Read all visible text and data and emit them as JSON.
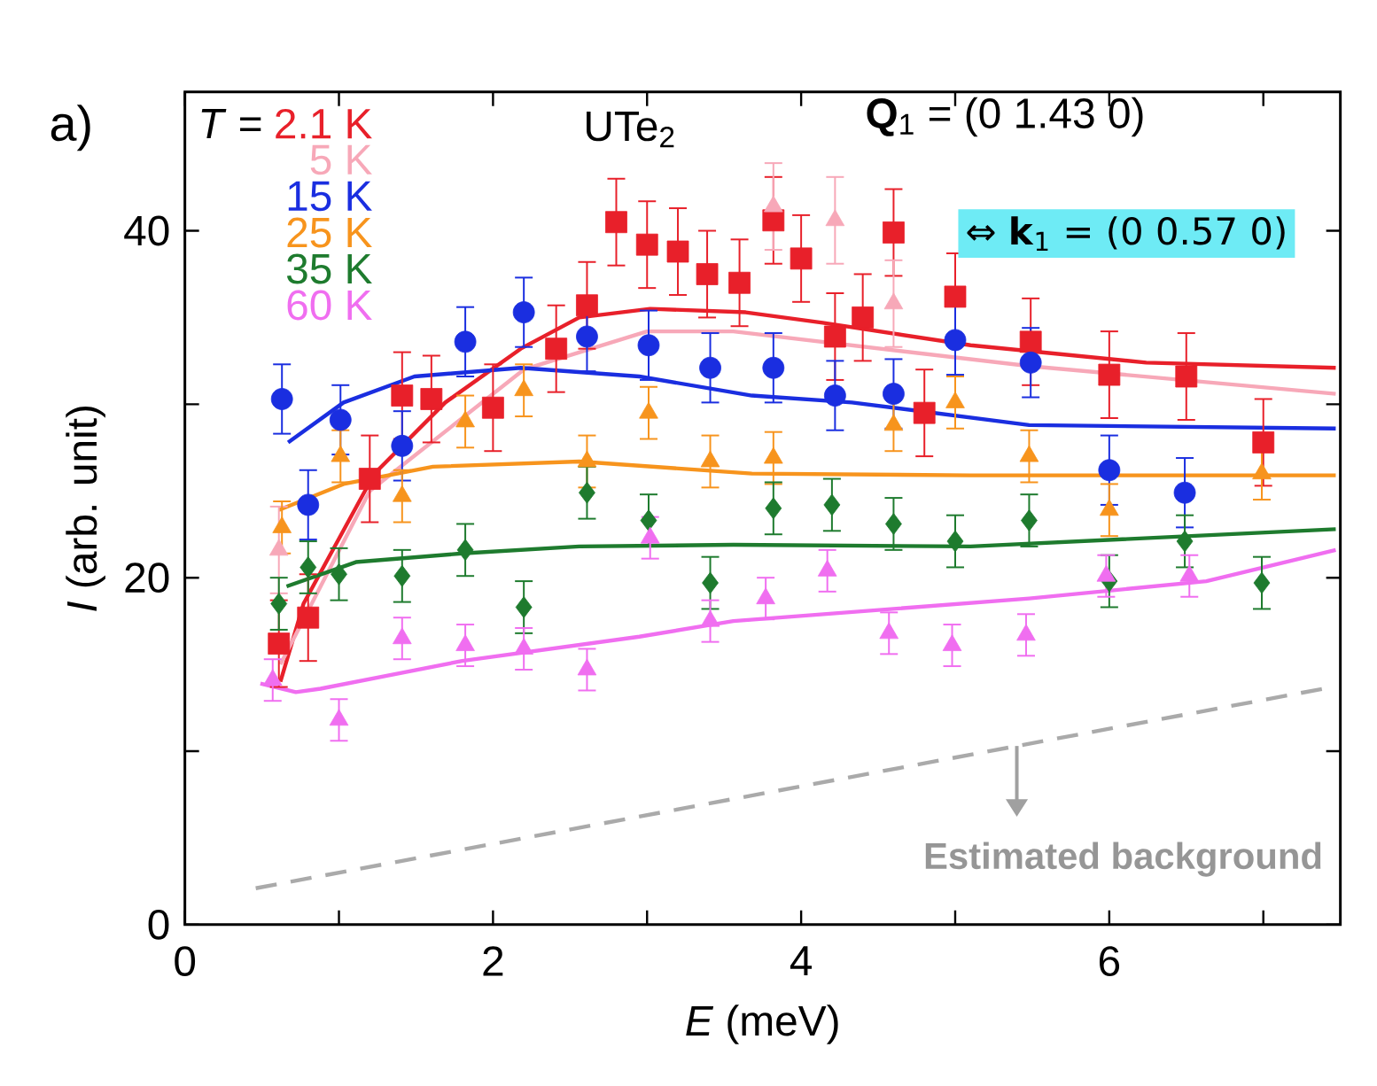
{
  "chart_data": {
    "type": "scatter",
    "xlabel": "*E* (meV)",
    "ylabel": "*I* (arb. unit)",
    "legend_title": "*T* =",
    "legend": "top left",
    "xlim": [
      0,
      7.5
    ],
    "ylim": [
      0,
      48
    ],
    "xticks": [
      0,
      {
        "value": 1,
        "label": null
      },
      2,
      {
        "value": 3,
        "label": null
      },
      4,
      {
        "value": 5,
        "label": null
      },
      6,
      {
        "value": 7,
        "label": null
      }
    ],
    "yticks": [
      0,
      {
        "value": 10,
        "label": null
      },
      20,
      {
        "value": 30,
        "label": null
      },
      40
    ],
    "annotations": [
      "a)",
      "UTe$_{2}$",
      "**Q**$_{1}$ = (0 1.43 0)",
      "⇔ **k**$_{1}$ = (0 0.57 0)",
      {
        "text": "Estimated background",
        "x": 5.4,
        "y": 10.3
      }
    ],
    "series": [
      {
        "type": "scatter",
        "name": "2.1 K",
        "color": "#e8202a",
        "marker": "square",
        "x": [
          0.61,
          0.8,
          1.2,
          1.41,
          1.6,
          2.0,
          2.41,
          2.61,
          2.8,
          3.0,
          3.2,
          3.39,
          3.6,
          3.82,
          4.0,
          4.22,
          4.4,
          4.6,
          4.8,
          5.0,
          5.49,
          6.0,
          6.5,
          7.0
        ],
        "values": [
          16.2,
          17.7,
          25.7,
          30.5,
          30.3,
          29.8,
          33.2,
          35.7,
          40.5,
          39.2,
          38.8,
          37.5,
          37.0,
          40.6,
          38.4,
          33.9,
          35.0,
          39.9,
          29.5,
          36.2,
          33.6,
          31.7,
          31.6,
          27.8
        ],
        "errors": [
          2.5,
          2.5,
          2.5,
          2.5,
          2.5,
          2.5,
          2.5,
          2.5,
          2.5,
          2.5,
          2.5,
          2.5,
          2.5,
          2.5,
          2.5,
          2.5,
          2.5,
          2.5,
          2.5,
          2.5,
          2.5,
          2.5,
          2.5,
          2.5
        ]
      },
      {
        "type": "scatter",
        "name": "5 K",
        "color": "#f7a8b8",
        "marker": "triangle",
        "x": [
          0.61,
          3.82,
          4.22,
          4.6
        ],
        "values": [
          21.6,
          41.4,
          40.6,
          35.8
        ],
        "errors": [
          2.5,
          2.5,
          2.5,
          2.5
        ]
      },
      {
        "type": "scatter",
        "name": "15 K",
        "color": "#1a2ee0",
        "marker": "circle",
        "x": [
          0.63,
          0.8,
          1.01,
          1.41,
          1.82,
          2.2,
          2.61,
          3.01,
          3.41,
          3.82,
          4.22,
          4.6,
          5.0,
          5.49,
          6.0,
          6.49
        ],
        "values": [
          30.3,
          24.2,
          29.1,
          27.6,
          33.6,
          35.3,
          33.9,
          33.4,
          32.1,
          32.1,
          30.5,
          30.6,
          33.7,
          32.4,
          26.2,
          24.9
        ],
        "errors": [
          2,
          2,
          2,
          2,
          2,
          2,
          2,
          2,
          2,
          2,
          2,
          2,
          2,
          2,
          2,
          2
        ]
      },
      {
        "type": "scatter",
        "name": "25 K",
        "color": "#f7941d",
        "marker": "triangle",
        "x": [
          0.63,
          1.01,
          1.41,
          1.82,
          2.2,
          2.61,
          3.01,
          3.41,
          3.82,
          4.6,
          5.0,
          5.48,
          6.0,
          6.99
        ],
        "values": [
          22.9,
          27.0,
          24.7,
          29.0,
          30.8,
          26.7,
          29.5,
          26.7,
          26.9,
          28.8,
          30.1,
          27.0,
          23.9,
          26.0
        ],
        "errors": [
          1.5,
          1.5,
          1.5,
          1.5,
          1.5,
          1.5,
          1.5,
          1.5,
          1.5,
          1.5,
          1.5,
          1.5,
          1.5,
          1.5
        ]
      },
      {
        "type": "scatter",
        "name": "35 K",
        "color": "#1e7b2e",
        "marker": "diamond",
        "x": [
          0.61,
          0.8,
          1.0,
          1.41,
          1.82,
          2.2,
          2.61,
          3.01,
          3.41,
          3.82,
          4.2,
          4.6,
          5.0,
          5.48,
          6.0,
          6.49,
          6.99
        ],
        "values": [
          18.5,
          20.6,
          20.2,
          20.1,
          21.6,
          18.3,
          24.9,
          23.3,
          19.7,
          24.0,
          24.2,
          23.1,
          22.1,
          23.3,
          19.8,
          22.1,
          19.7
        ],
        "errors": [
          1.5,
          1.5,
          1.5,
          1.5,
          1.5,
          1.5,
          1.5,
          1.5,
          1.5,
          1.5,
          1.5,
          1.5,
          1.5,
          1.5,
          1.5,
          1.5,
          1.5
        ]
      },
      {
        "type": "scatter",
        "name": "60 K",
        "color": "#f06ef0",
        "marker": "triangle",
        "x": [
          0.57,
          1.0,
          1.41,
          1.82,
          2.2,
          2.61,
          3.02,
          3.41,
          3.77,
          4.17,
          4.57,
          4.98,
          5.46,
          5.98,
          6.52
        ],
        "values": [
          14.1,
          11.8,
          16.5,
          16.1,
          15.9,
          14.7,
          22.3,
          17.5,
          18.8,
          20.4,
          16.8,
          16.1,
          16.7,
          20.1,
          20.1
        ],
        "errors": [
          1.2,
          1.2,
          1.2,
          1.2,
          1.2,
          1.2,
          1.2,
          1.2,
          1.2,
          1.2,
          1.2,
          1.2,
          1.2,
          1.2,
          1.2
        ]
      },
      {
        "type": "line",
        "color": "#e8202a",
        "x": [
          0.62,
          0.77,
          1.23,
          1.69,
          2.18,
          2.56,
          3.02,
          3.64,
          4.14,
          5.1,
          6.24,
          7.47
        ],
        "values": [
          14.0,
          18.5,
          26.0,
          30.1,
          33.2,
          35.0,
          35.5,
          35.3,
          34.7,
          33.4,
          32.4,
          32.1
        ]
      },
      {
        "type": "line",
        "color": "#f7a8b8",
        "x": [
          0.62,
          1.2,
          2.2,
          3.0,
          3.56,
          5.48,
          7.47
        ],
        "values": [
          15.0,
          25.0,
          32.0,
          34.2,
          34.2,
          32.2,
          30.6
        ]
      },
      {
        "type": "line",
        "color": "#1a2ee0",
        "x": [
          0.67,
          1.03,
          1.49,
          2.18,
          2.95,
          3.68,
          4.33,
          5.48,
          7.47
        ],
        "values": [
          27.8,
          30.1,
          31.6,
          32.1,
          31.6,
          30.5,
          30.1,
          28.8,
          28.6
        ]
      },
      {
        "type": "line",
        "color": "#f7941d",
        "x": [
          0.61,
          1.03,
          1.61,
          2.56,
          3.68,
          5.1,
          7.47
        ],
        "values": [
          23.9,
          25.4,
          26.4,
          26.7,
          26.0,
          25.9,
          25.9
        ]
      },
      {
        "type": "line",
        "color": "#1e7b2e",
        "x": [
          0.66,
          1.11,
          1.8,
          2.56,
          3.56,
          5.1,
          7.47
        ],
        "values": [
          19.5,
          20.9,
          21.4,
          21.8,
          21.9,
          21.8,
          22.8
        ]
      },
      {
        "type": "line",
        "color": "#f06ef0",
        "x": [
          0.49,
          0.72,
          0.88,
          1.8,
          2.95,
          3.56,
          5.48,
          6.63,
          7.47
        ],
        "values": [
          13.9,
          13.4,
          13.6,
          15.2,
          16.6,
          17.5,
          18.8,
          19.8,
          21.6
        ]
      },
      {
        "type": "line",
        "color": "#aaaaaa",
        "line_style": "dashed",
        "x": [
          0.46,
          7.39
        ],
        "values": [
          2.1,
          13.6
        ]
      }
    ]
  }
}
